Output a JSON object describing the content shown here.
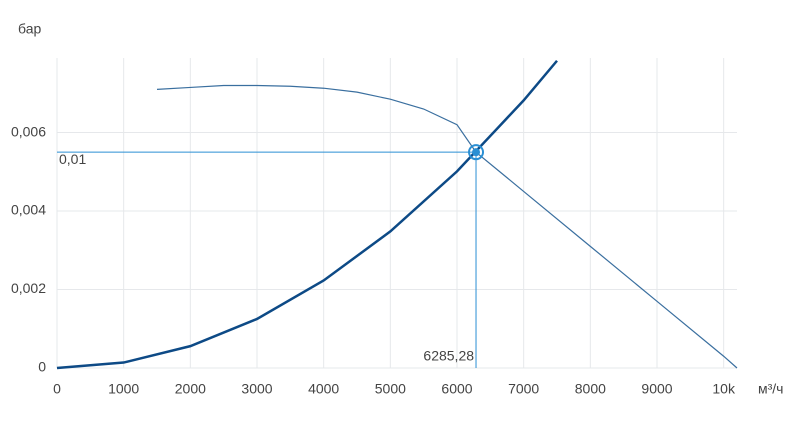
{
  "chart_data": {
    "type": "line",
    "y_axis_label": "бар",
    "x_axis_label": "м³/ч",
    "xlim": [
      0,
      10200
    ],
    "ylim": [
      0,
      0.0079
    ],
    "xticks": [
      0,
      1000,
      2000,
      3000,
      4000,
      5000,
      6000,
      7000,
      8000,
      9000,
      {
        "value": 10000,
        "label": "10k"
      }
    ],
    "yticks": [
      0,
      {
        "value": 0.002,
        "label": "0,002"
      },
      {
        "value": 0.004,
        "label": "0,004"
      },
      {
        "value": 0.006,
        "label": "0,006"
      }
    ],
    "grid": true,
    "series": [
      {
        "color": "#0d4a86",
        "x": [
          0,
          1000,
          2000,
          3000,
          4000,
          5000,
          6000,
          7000,
          7500
        ],
        "values": [
          0,
          0.000139,
          0.000557,
          0.00125,
          0.00223,
          0.00348,
          0.00501,
          0.00682,
          0.00783
        ]
      },
      {
        "color": "#3a6f9f",
        "x": [
          1500,
          2000,
          2500,
          3000,
          3500,
          4000,
          4500,
          5000,
          5500,
          6000,
          6285.28,
          7000,
          8000,
          9000,
          10000,
          10200
        ],
        "values": [
          0.0071,
          0.00715,
          0.0072,
          0.0072,
          0.00718,
          0.00713,
          0.00703,
          0.00685,
          0.0066,
          0.0062,
          0.0055,
          0.0045,
          0.0031,
          0.0017,
          0.0003,
          0
        ]
      }
    ],
    "operating_point": {
      "x": 6285.28,
      "y": 0.0055,
      "x_label": "6285,28",
      "y_label": "0,01",
      "color": "#2a8fd4"
    }
  }
}
